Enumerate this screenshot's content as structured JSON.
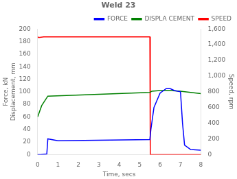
{
  "chart_data": {
    "type": "line",
    "title": "Weld 23",
    "x_label": "Time, secs",
    "y_label": "Force, kN\nDisplacement, mm",
    "y2_label": "Speed, rpm",
    "xlim": [
      0,
      8
    ],
    "xticks": [
      0,
      1,
      2,
      3,
      4,
      5,
      6,
      7,
      8
    ],
    "ylim": [
      0,
      200
    ],
    "yticks": [
      0,
      20,
      40,
      60,
      80,
      100,
      120,
      140,
      160,
      180,
      200
    ],
    "y2lim": [
      0,
      1600
    ],
    "y2ticks": [
      0,
      200,
      400,
      600,
      800,
      1000,
      1200,
      1400,
      1600
    ],
    "grid": false,
    "legend": "upper right",
    "series": [
      {
        "name": "FORCE",
        "color": "blue",
        "axis": "y",
        "x": [
          0.0,
          0.15,
          0.45,
          0.5,
          1.0,
          5.5,
          5.55,
          5.7,
          6.0,
          6.3,
          6.5,
          6.7,
          7.0,
          7.1,
          7.2,
          7.5,
          8.0
        ],
        "values": [
          0,
          0,
          1,
          25,
          22,
          24,
          40,
          75,
          98,
          105,
          105,
          102,
          100,
          50,
          15,
          8,
          7
        ]
      },
      {
        "name": "DISPLA CEMENT",
        "color": "green",
        "axis": "y",
        "x": [
          0.0,
          0.2,
          0.5,
          5.5,
          5.6,
          6.0,
          6.5,
          7.0,
          7.5,
          8.0
        ],
        "values": [
          60,
          78,
          93,
          99,
          101,
          102,
          102,
          101,
          99,
          97
        ]
      },
      {
        "name": "SPEED",
        "color": "red",
        "axis": "y2",
        "x": [
          0.0,
          0.05,
          0.3,
          5.5,
          5.52,
          8.0
        ],
        "values": [
          1500,
          1490,
          1500,
          1500,
          0,
          0
        ]
      }
    ]
  }
}
